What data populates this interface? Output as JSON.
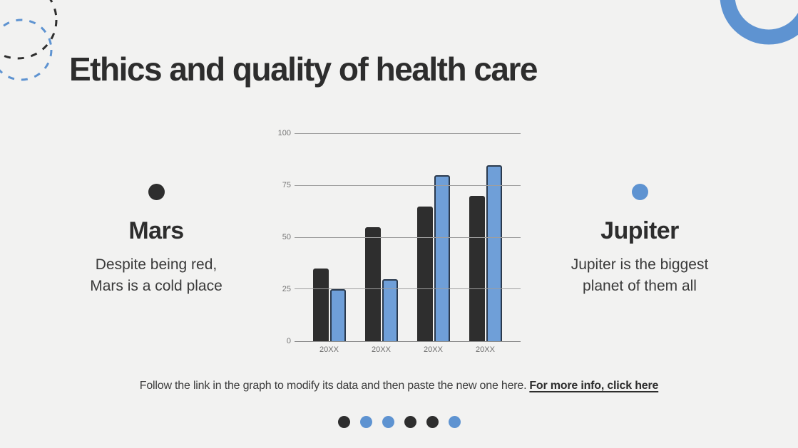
{
  "title": "Ethics and quality of health care",
  "colors": {
    "dark": "#2e2e2e",
    "blue": "#5e93d1",
    "bar_blue": "#6f9fd8",
    "bar_border": "#2b3a4d",
    "background": "#f2f2f1"
  },
  "left_card": {
    "heading": "Mars",
    "body_lines": [
      "Despite being red,",
      "Mars is a cold place"
    ]
  },
  "right_card": {
    "heading": "Jupiter",
    "body_lines": [
      "Jupiter is the biggest",
      "planet of them all"
    ]
  },
  "footer": {
    "text": "Follow the link in the graph to modify its data and then paste the new one here.",
    "link_label": "For more info, click here"
  },
  "pagination": {
    "dots": [
      "dark",
      "blue",
      "blue",
      "dark",
      "dark",
      "blue"
    ]
  },
  "chart_data": {
    "type": "bar",
    "title": "",
    "xlabel": "",
    "ylabel": "",
    "categories": [
      "20XX",
      "20XX",
      "20XX",
      "20XX"
    ],
    "series": [
      {
        "name": "series-dark",
        "color": "#2e2e2e",
        "values": [
          35,
          55,
          65,
          70
        ]
      },
      {
        "name": "series-blue",
        "color": "#6f9fd8",
        "values": [
          25,
          30,
          80,
          85
        ]
      }
    ],
    "yticks": [
      0,
      25,
      50,
      75,
      100
    ],
    "ylim": [
      0,
      100
    ],
    "grid": true,
    "legend_position": "none"
  }
}
